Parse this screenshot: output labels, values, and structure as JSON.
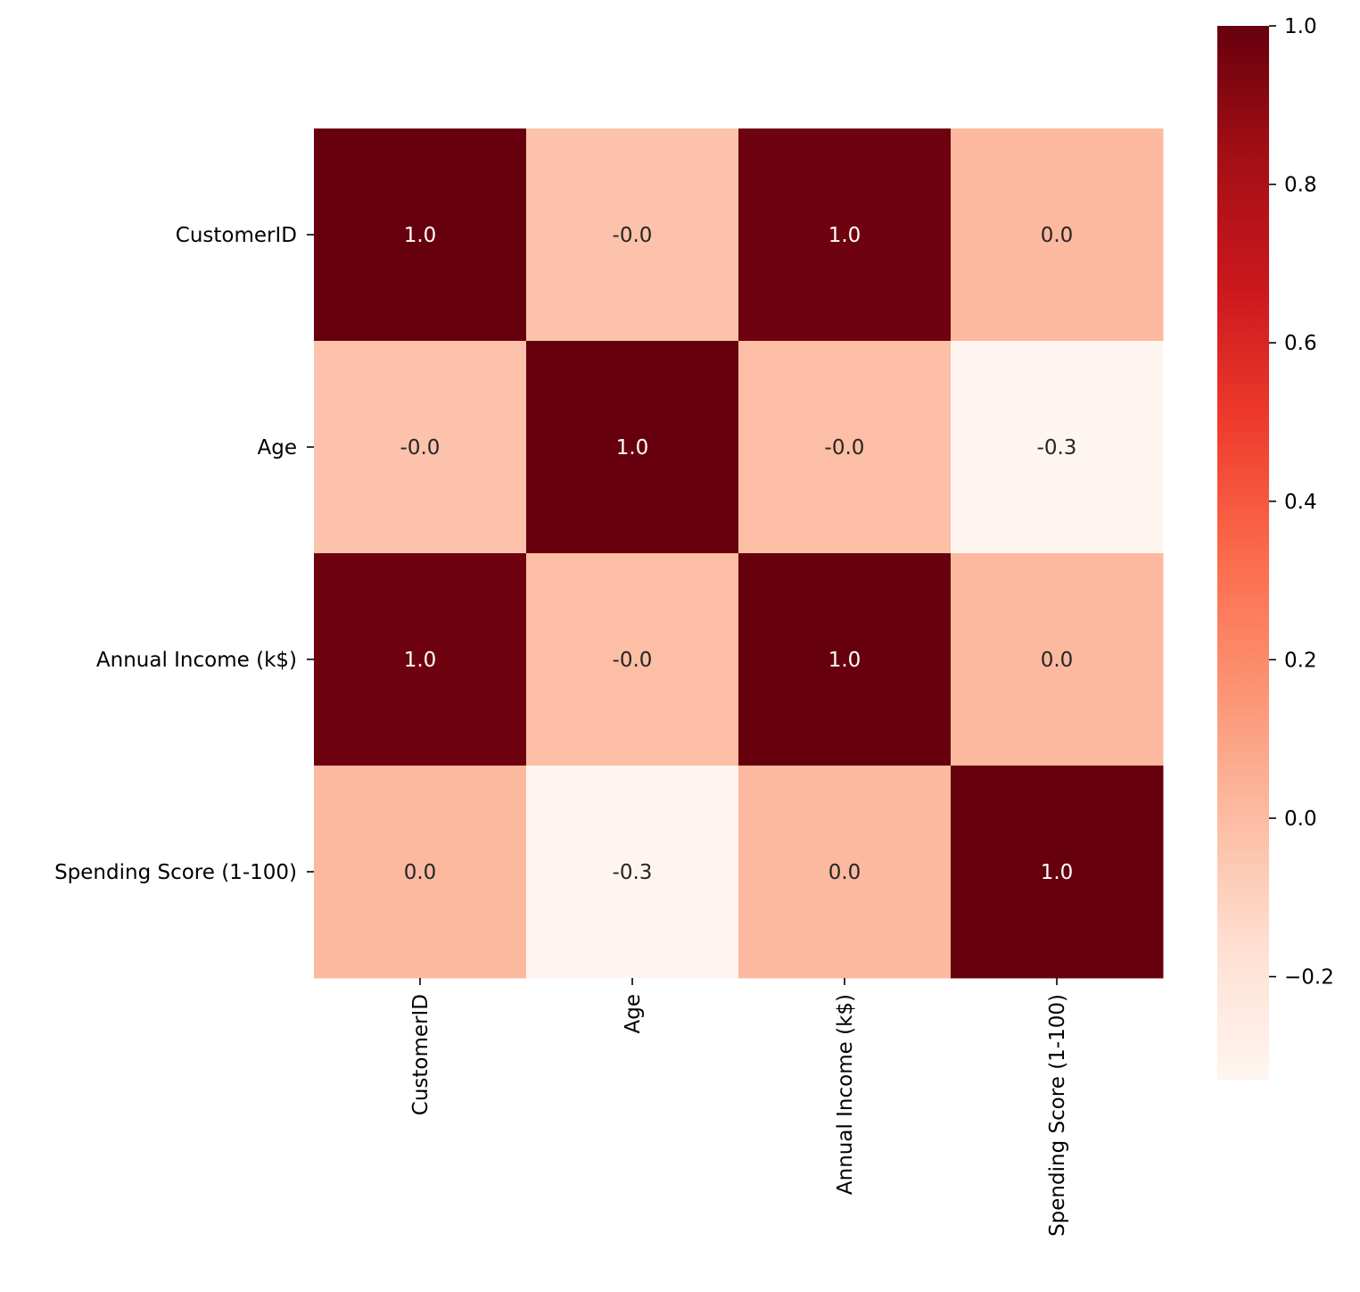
{
  "chart_data": {
    "type": "heatmap",
    "title": "",
    "xlabel": "",
    "ylabel": "",
    "x_labels": [
      "CustomerID",
      "Age",
      "Annual Income (k$)",
      "Spending Score (1-100)"
    ],
    "y_labels": [
      "CustomerID",
      "Age",
      "Annual Income (k$)",
      "Spending Score (1-100)"
    ],
    "values": [
      [
        1.0,
        -0.03,
        0.98,
        0.01
      ],
      [
        -0.03,
        1.0,
        -0.01,
        -0.33
      ],
      [
        0.98,
        -0.01,
        1.0,
        0.01
      ],
      [
        0.01,
        -0.33,
        0.01,
        1.0
      ]
    ],
    "annotations": [
      [
        "1.0",
        "-0.0",
        "1.0",
        "0.0"
      ],
      [
        "-0.0",
        "1.0",
        "-0.0",
        "-0.3"
      ],
      [
        "1.0",
        "-0.0",
        "1.0",
        "0.0"
      ],
      [
        "0.0",
        "-0.3",
        "0.0",
        "1.0"
      ]
    ],
    "colorbar": {
      "colormap": "Reds",
      "range": [
        -0.33,
        1.0
      ],
      "ticks": [
        1.0,
        0.8,
        0.6,
        0.4,
        0.2,
        0.0,
        -0.2
      ],
      "tick_labels": [
        "1.0",
        "0.8",
        "0.6",
        "0.4",
        "0.2",
        "0.0",
        "−0.2"
      ]
    },
    "colors": {
      "reds_stops": [
        "#fff5f0",
        "#fee0d2",
        "#fcbba1",
        "#fc9272",
        "#fb6a4a",
        "#ef3b2c",
        "#cb181d",
        "#a50f15",
        "#67000d"
      ],
      "dark_text": "#262626",
      "light_text": "#ffffff"
    }
  }
}
